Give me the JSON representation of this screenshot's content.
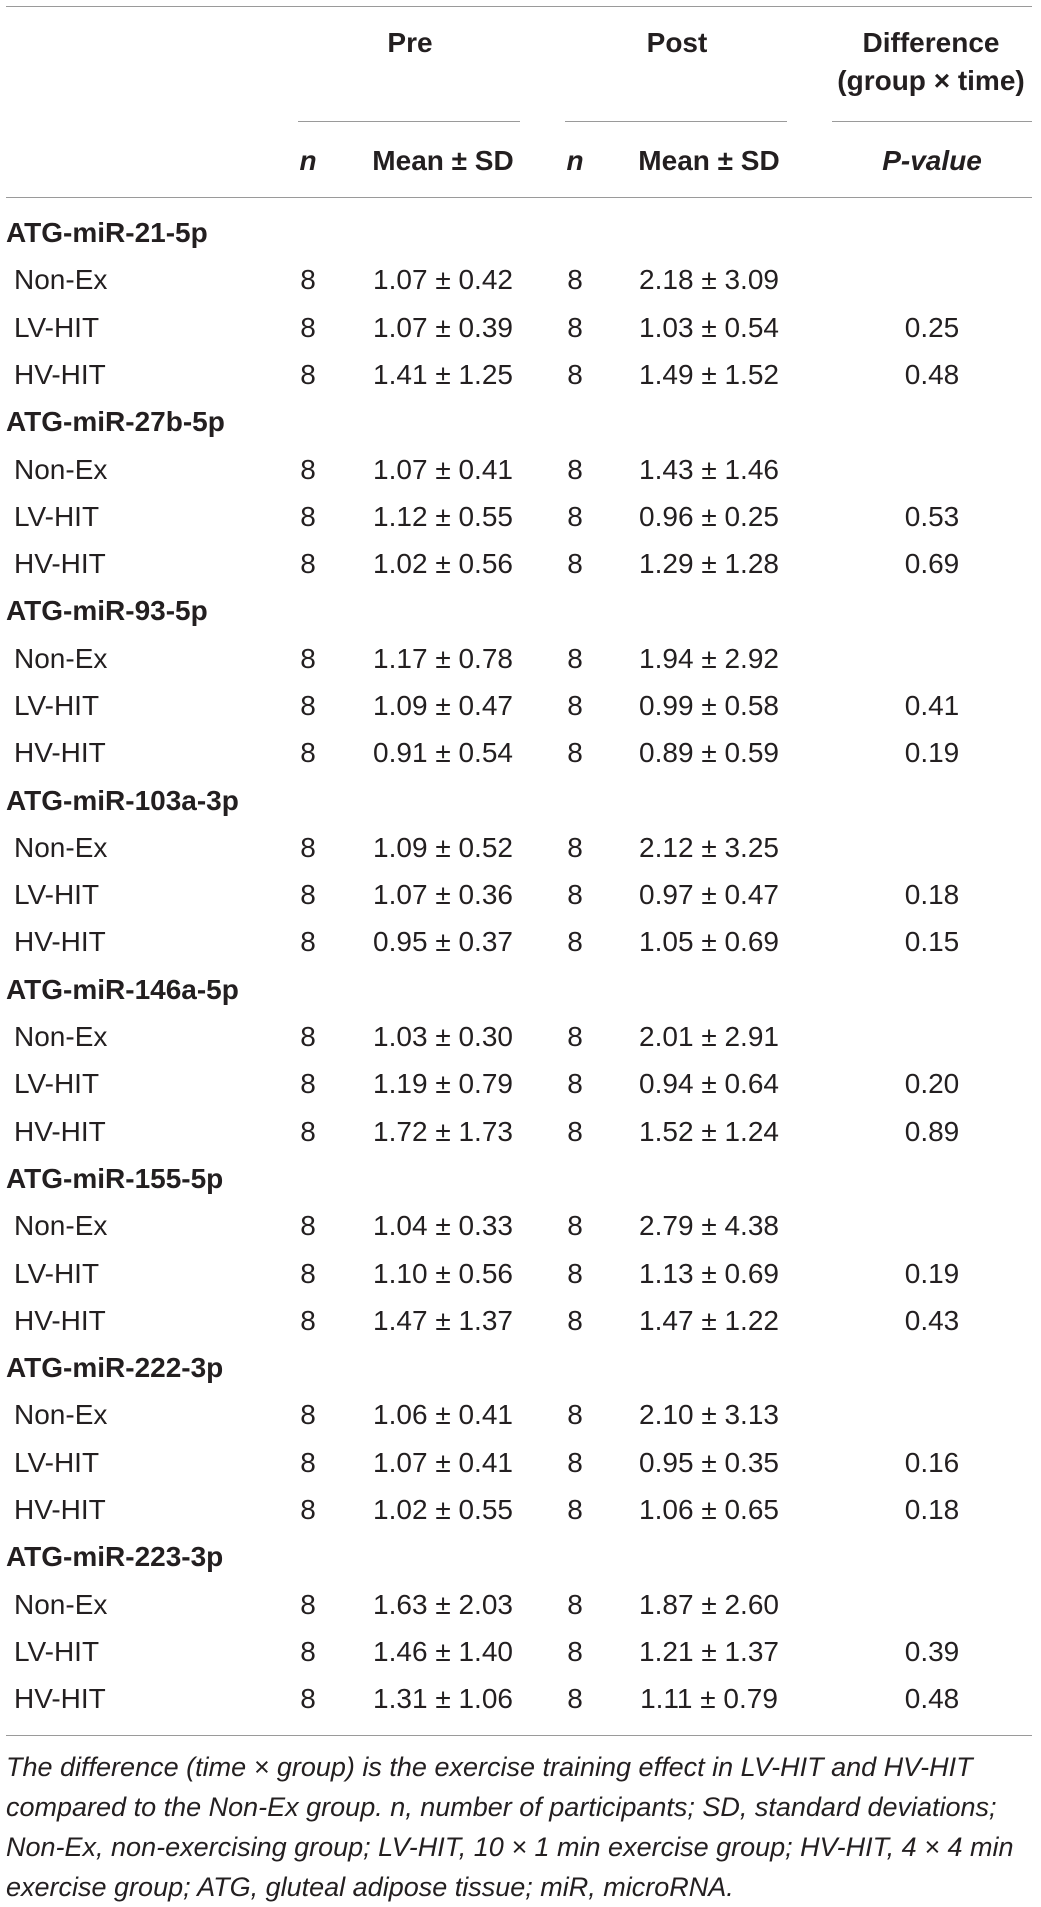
{
  "header": {
    "pre": "Pre",
    "post": "Post",
    "difference_line1": "Difference",
    "difference_line2": "(group × time)",
    "n": "n",
    "mean_sd": "Mean ± SD",
    "p_value": "P-value"
  },
  "groups": [
    {
      "title": "ATG-miR-21-5p",
      "rows": [
        {
          "label": "Non-Ex",
          "n_pre": "8",
          "pre": "1.07 ± 0.42",
          "n_post": "8",
          "post": "2.18 ± 3.09",
          "p": ""
        },
        {
          "label": "LV-HIT",
          "n_pre": "8",
          "pre": "1.07 ± 0.39",
          "n_post": "8",
          "post": "1.03 ± 0.54",
          "p": "0.25"
        },
        {
          "label": "HV-HIT",
          "n_pre": "8",
          "pre": "1.41 ± 1.25",
          "n_post": "8",
          "post": "1.49 ± 1.52",
          "p": "0.48"
        }
      ]
    },
    {
      "title": "ATG-miR-27b-5p",
      "rows": [
        {
          "label": "Non-Ex",
          "n_pre": "8",
          "pre": "1.07 ± 0.41",
          "n_post": "8",
          "post": "1.43 ± 1.46",
          "p": ""
        },
        {
          "label": "LV-HIT",
          "n_pre": "8",
          "pre": "1.12 ± 0.55",
          "n_post": "8",
          "post": "0.96 ± 0.25",
          "p": "0.53"
        },
        {
          "label": "HV-HIT",
          "n_pre": "8",
          "pre": "1.02 ± 0.56",
          "n_post": "8",
          "post": "1.29 ± 1.28",
          "p": "0.69"
        }
      ]
    },
    {
      "title": "ATG-miR-93-5p",
      "rows": [
        {
          "label": "Non-Ex",
          "n_pre": "8",
          "pre": "1.17 ± 0.78",
          "n_post": "8",
          "post": "1.94 ± 2.92",
          "p": ""
        },
        {
          "label": "LV-HIT",
          "n_pre": "8",
          "pre": "1.09 ± 0.47",
          "n_post": "8",
          "post": "0.99 ± 0.58",
          "p": "0.41"
        },
        {
          "label": "HV-HIT",
          "n_pre": "8",
          "pre": "0.91 ± 0.54",
          "n_post": "8",
          "post": "0.89 ± 0.59",
          "p": "0.19"
        }
      ]
    },
    {
      "title": "ATG-miR-103a-3p",
      "rows": [
        {
          "label": "Non-Ex",
          "n_pre": "8",
          "pre": "1.09 ± 0.52",
          "n_post": "8",
          "post": "2.12 ± 3.25",
          "p": ""
        },
        {
          "label": "LV-HIT",
          "n_pre": "8",
          "pre": "1.07 ± 0.36",
          "n_post": "8",
          "post": "0.97 ± 0.47",
          "p": "0.18"
        },
        {
          "label": "HV-HIT",
          "n_pre": "8",
          "pre": "0.95 ± 0.37",
          "n_post": "8",
          "post": "1.05 ± 0.69",
          "p": "0.15"
        }
      ]
    },
    {
      "title": "ATG-miR-146a-5p",
      "rows": [
        {
          "label": "Non-Ex",
          "n_pre": "8",
          "pre": "1.03 ± 0.30",
          "n_post": "8",
          "post": "2.01 ± 2.91",
          "p": ""
        },
        {
          "label": "LV-HIT",
          "n_pre": "8",
          "pre": "1.19 ± 0.79",
          "n_post": "8",
          "post": "0.94 ± 0.64",
          "p": "0.20"
        },
        {
          "label": "HV-HIT",
          "n_pre": "8",
          "pre": "1.72 ± 1.73",
          "n_post": "8",
          "post": "1.52 ± 1.24",
          "p": "0.89"
        }
      ]
    },
    {
      "title": "ATG-miR-155-5p",
      "rows": [
        {
          "label": "Non-Ex",
          "n_pre": "8",
          "pre": "1.04 ± 0.33",
          "n_post": "8",
          "post": "2.79 ± 4.38",
          "p": ""
        },
        {
          "label": "LV-HIT",
          "n_pre": "8",
          "pre": "1.10 ± 0.56",
          "n_post": "8",
          "post": "1.13 ± 0.69",
          "p": "0.19"
        },
        {
          "label": "HV-HIT",
          "n_pre": "8",
          "pre": "1.47 ± 1.37",
          "n_post": "8",
          "post": "1.47 ± 1.22",
          "p": "0.43"
        }
      ]
    },
    {
      "title": "ATG-miR-222-3p",
      "rows": [
        {
          "label": "Non-Ex",
          "n_pre": "8",
          "pre": "1.06 ± 0.41",
          "n_post": "8",
          "post": "2.10 ± 3.13",
          "p": ""
        },
        {
          "label": "LV-HIT",
          "n_pre": "8",
          "pre": "1.07 ± 0.41",
          "n_post": "8",
          "post": "0.95 ± 0.35",
          "p": "0.16"
        },
        {
          "label": "HV-HIT",
          "n_pre": "8",
          "pre": "1.02 ± 0.55",
          "n_post": "8",
          "post": "1.06 ± 0.65",
          "p": "0.18"
        }
      ]
    },
    {
      "title": "ATG-miR-223-3p",
      "rows": [
        {
          "label": "Non-Ex",
          "n_pre": "8",
          "pre": "1.63 ± 2.03",
          "n_post": "8",
          "post": "1.87 ± 2.60",
          "p": ""
        },
        {
          "label": "LV-HIT",
          "n_pre": "8",
          "pre": "1.46 ± 1.40",
          "n_post": "8",
          "post": "1.21 ± 1.37",
          "p": "0.39"
        },
        {
          "label": "HV-HIT",
          "n_pre": "8",
          "pre": "1.31 ± 1.06",
          "n_post": "8",
          "post": "1.11 ± 0.79",
          "p": "0.48"
        }
      ]
    }
  ],
  "footnote": "The difference (time × group) is the exercise training effect in LV-HIT and HV-HIT compared to the Non-Ex group. n, number of participants; SD, standard deviations; Non-Ex, non-exercising group; LV-HIT, 10 × 1 min exercise group; HV-HIT, 4 × 4 min exercise group; ATG, gluteal adipose tissue; miR, microRNA."
}
